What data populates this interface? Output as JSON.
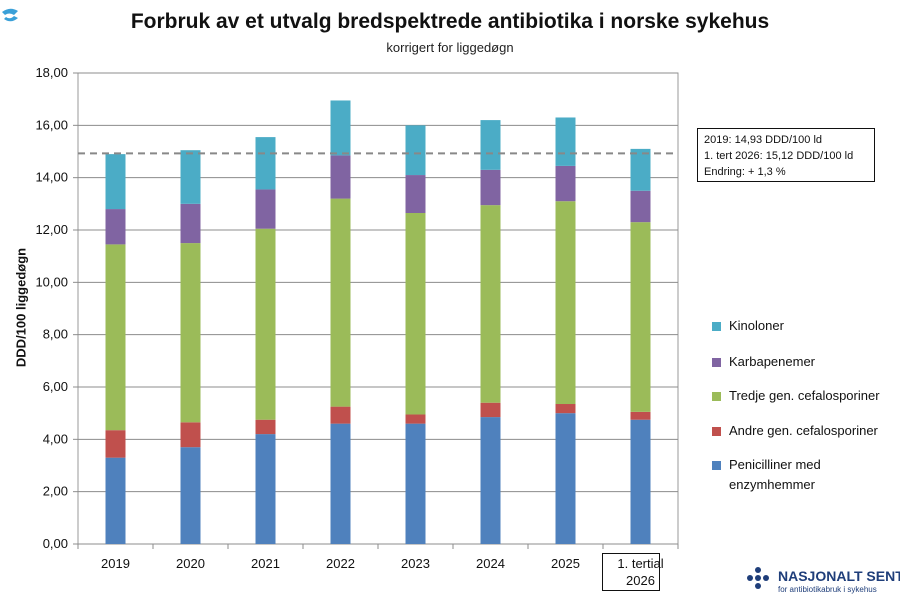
{
  "chart_data": {
    "type": "bar",
    "stacked": true,
    "title": "Forbruk av et utvalg bredspektrede antibiotika i norske sykehus",
    "subtitle": "korrigert for liggedøgn",
    "ylabel": "DDD/100 liggedøgn",
    "ylim": [
      0,
      18
    ],
    "yticks": [
      "0,00",
      "2,00",
      "4,00",
      "6,00",
      "8,00",
      "10,00",
      "12,00",
      "14,00",
      "16,00",
      "18,00"
    ],
    "categories": [
      "2019",
      "2020",
      "2021",
      "2022",
      "2023",
      "2024",
      "2025",
      "1. tertial 2026"
    ],
    "series": [
      {
        "name": "Penicilliner med enzymhemmer",
        "color": "#4f81bd",
        "values": [
          3.3,
          3.7,
          4.2,
          4.6,
          4.6,
          4.85,
          5.0,
          4.75
        ]
      },
      {
        "name": "Andre gen. cefalosporiner",
        "color": "#c0504d",
        "values": [
          1.05,
          0.95,
          0.55,
          0.65,
          0.35,
          0.55,
          0.35,
          0.3
        ]
      },
      {
        "name": "Tredje gen. cefalosporiner",
        "color": "#9bbb59",
        "values": [
          7.1,
          6.85,
          7.3,
          7.95,
          7.7,
          7.55,
          7.75,
          7.25
        ]
      },
      {
        "name": "Karbapenemer",
        "color": "#8064a2",
        "values": [
          1.35,
          1.5,
          1.5,
          1.65,
          1.45,
          1.35,
          1.35,
          1.2
        ]
      },
      {
        "name": "Kinoloner",
        "color": "#4bacc6",
        "values": [
          2.1,
          2.05,
          2.0,
          2.1,
          1.9,
          1.9,
          1.85,
          1.6
        ]
      }
    ],
    "reference_line": {
      "value": 14.93,
      "style": "dashed",
      "color": "#888888"
    },
    "legend_position": "right",
    "grid": true
  },
  "info_box": {
    "line1": "2019: 14,93 DDD/100 ld",
    "line2": "1. tert 2026: 15,12 DDD/100 ld",
    "line3": "Endring: + 1,3 %"
  },
  "last_category_lines": [
    "1. tertial",
    "2026"
  ],
  "legend_items": [
    {
      "name": "Kinoloner",
      "color": "#4bacc6"
    },
    {
      "name": "Karbapenemer",
      "color": "#8064a2"
    },
    {
      "name": "Tredje gen. cefalosporiner",
      "color": "#9bbb59"
    },
    {
      "name": "Andre gen. cefalosporiner",
      "color": "#c0504d"
    },
    {
      "name": "Penicilliner med enzymhemmer",
      "color": "#4f81bd"
    }
  ],
  "brand": {
    "name": "NASJONALT SENTER",
    "sub": "for antibiotikabruk i sykehus",
    "color": "#1f3e7a"
  }
}
